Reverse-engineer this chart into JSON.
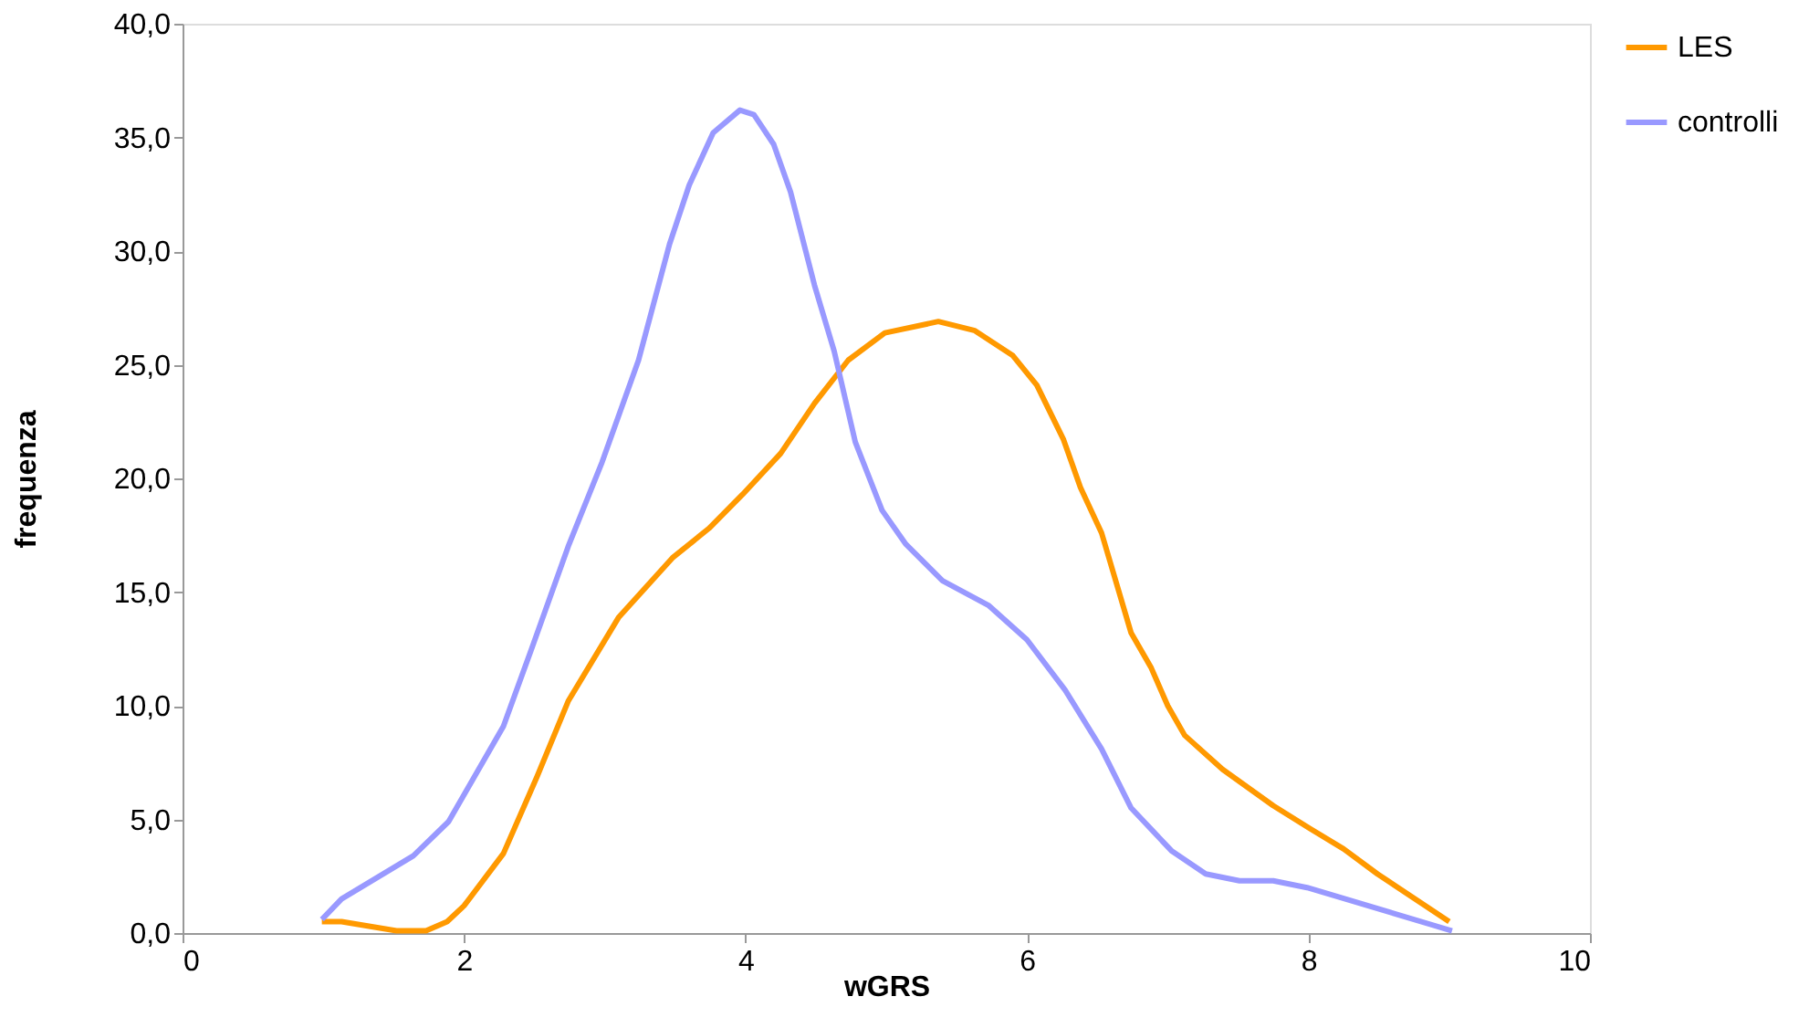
{
  "chart_data": {
    "type": "line",
    "xlabel": "wGRS",
    "ylabel": "frequenza",
    "xlim": [
      0,
      10
    ],
    "xticks": [
      0,
      2,
      4,
      6,
      8,
      10
    ],
    "ylim": [
      0,
      40
    ],
    "yticks": [
      {
        "value": 0,
        "label": "0,0"
      },
      {
        "value": 5,
        "label": "5,0"
      },
      {
        "value": 10,
        "label": "10,0"
      },
      {
        "value": 15,
        "label": "15,0"
      },
      {
        "value": 20,
        "label": "20,0"
      },
      {
        "value": 25,
        "label": "25,0"
      },
      {
        "value": 30,
        "label": "30,0"
      },
      {
        "value": 35,
        "label": "35,0"
      },
      {
        "value": 40,
        "label": "40,0"
      }
    ],
    "grid": false,
    "legend": "right",
    "marker": "none",
    "line_style": "solid",
    "series": [
      {
        "name": "LES",
        "color": "#ff9900",
        "x": [
          0.99,
          1.13,
          1.52,
          1.73,
          1.88,
          2.0,
          2.28,
          2.52,
          2.74,
          3.1,
          3.48,
          3.74,
          3.98,
          4.25,
          4.49,
          4.73,
          4.99,
          5.37,
          5.63,
          5.9,
          6.07,
          6.26,
          6.38,
          6.53,
          6.74,
          6.88,
          7.0,
          7.12,
          7.39,
          7.75,
          8.01,
          8.25,
          8.49,
          9.0
        ],
        "values": [
          0.5,
          0.5,
          0.1,
          0.1,
          0.5,
          1.2,
          3.5,
          6.9,
          10.2,
          13.9,
          16.5,
          17.8,
          19.3,
          21.1,
          23.3,
          25.2,
          26.4,
          26.9,
          26.5,
          25.4,
          24.1,
          21.7,
          19.6,
          17.6,
          13.2,
          11.7,
          10.0,
          8.7,
          7.2,
          5.6,
          4.6,
          3.7,
          2.6,
          0.5
        ]
      },
      {
        "name": "controlli",
        "color": "#9999ff",
        "x": [
          0.99,
          1.13,
          1.64,
          1.89,
          2.28,
          2.48,
          2.74,
          2.98,
          3.24,
          3.46,
          3.6,
          3.77,
          3.96,
          4.06,
          4.2,
          4.32,
          4.49,
          4.63,
          4.78,
          4.97,
          5.14,
          5.4,
          5.73,
          6.0,
          6.27,
          6.53,
          6.74,
          7.03,
          7.27,
          7.51,
          7.75,
          7.99,
          9.02
        ],
        "values": [
          0.6,
          1.5,
          3.4,
          4.9,
          9.1,
          12.5,
          17.0,
          20.7,
          25.2,
          30.3,
          32.9,
          35.2,
          36.2,
          36.0,
          34.7,
          32.6,
          28.5,
          25.6,
          21.6,
          18.6,
          17.1,
          15.5,
          14.4,
          12.9,
          10.7,
          8.1,
          5.5,
          3.6,
          2.6,
          2.3,
          2.3,
          2.0,
          0.1
        ]
      }
    ]
  }
}
